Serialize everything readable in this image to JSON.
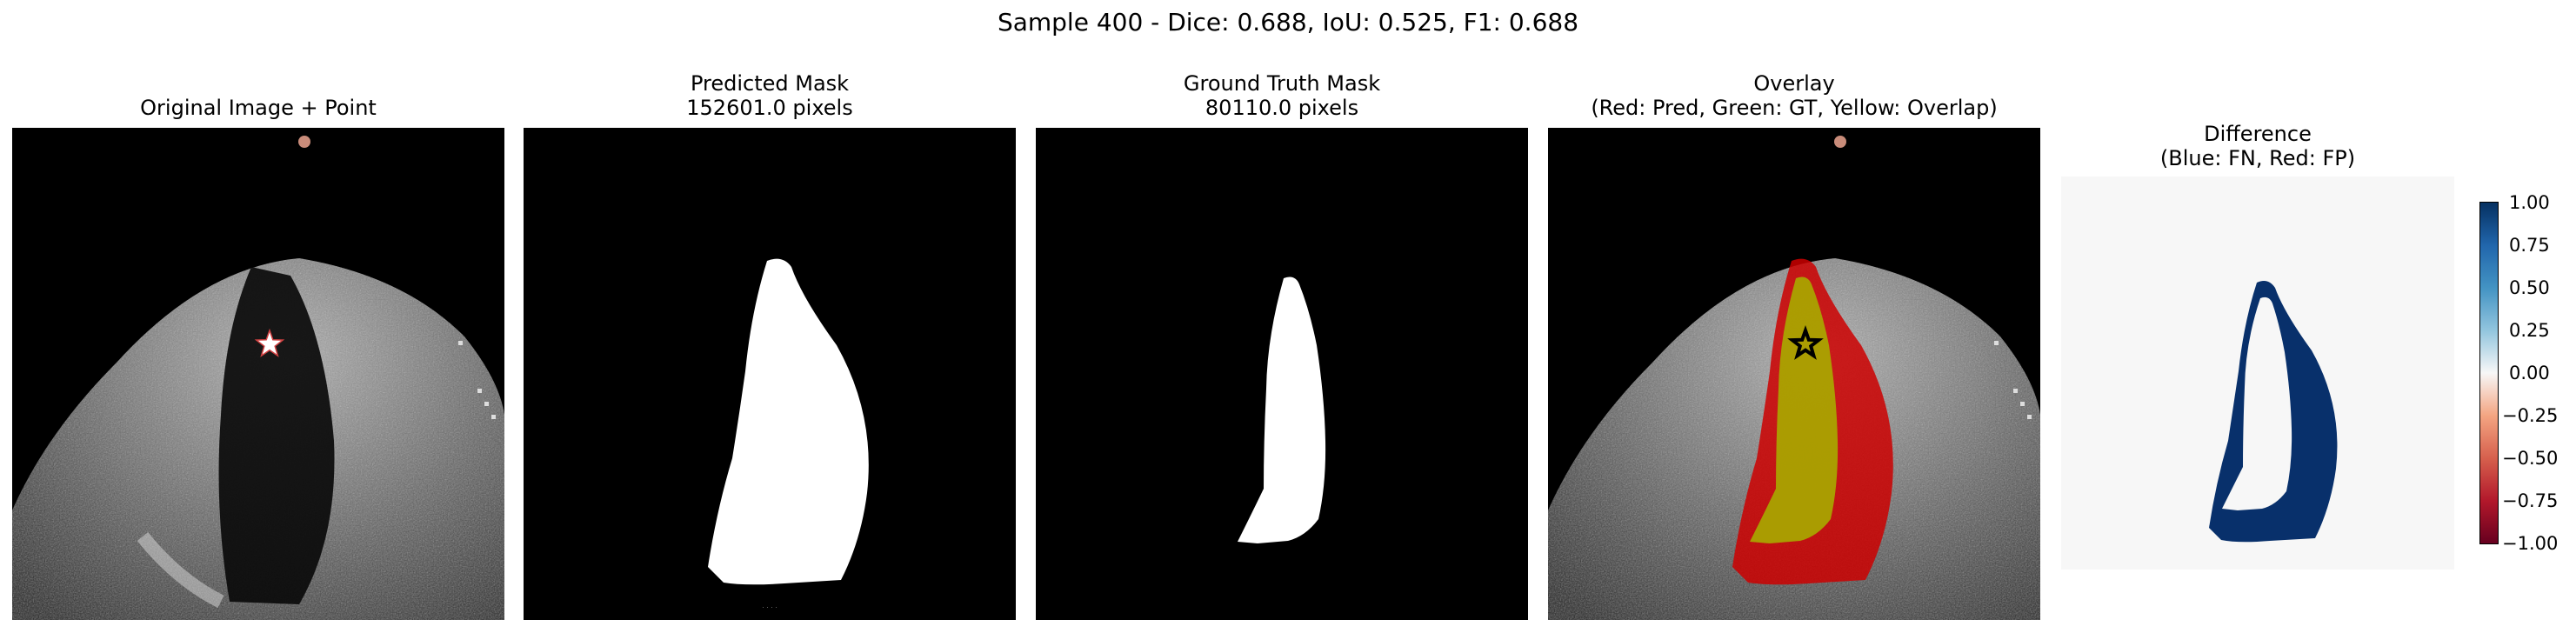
{
  "figure": {
    "suptitle": "Sample 400 - Dice: 0.688, IoU: 0.525, F1: 0.688"
  },
  "panels": [
    {
      "title_lines": [
        "Original Image + Point"
      ]
    },
    {
      "title_lines": [
        "Predicted Mask",
        "152601.0 pixels"
      ]
    },
    {
      "title_lines": [
        "Ground Truth Mask",
        "80110.0 pixels"
      ]
    },
    {
      "title_lines": [
        "Overlay",
        "(Red: Pred, Green: GT, Yellow: Overlap)"
      ]
    },
    {
      "title_lines": [
        "Difference",
        "(Blue: FN, Red: FP)"
      ]
    }
  ],
  "colorbar": {
    "range": [
      -1.0,
      1.0
    ],
    "ticks": [
      "1.00",
      "0.75",
      "0.50",
      "0.25",
      "0.00",
      "−0.25",
      "−0.50",
      "−0.75",
      "−1.00"
    ],
    "colormap": "RdBu",
    "color_low": "#67001f",
    "color_mid": "#f7f7f7",
    "color_high": "#053061"
  },
  "colors": {
    "prediction": "#cc0000",
    "ground_truth": "#00b000",
    "overlap": "#a8a800",
    "false_negative": "#08306b",
    "point_marker": "#ffffff"
  },
  "icons": {
    "point_marker": "star-icon"
  }
}
